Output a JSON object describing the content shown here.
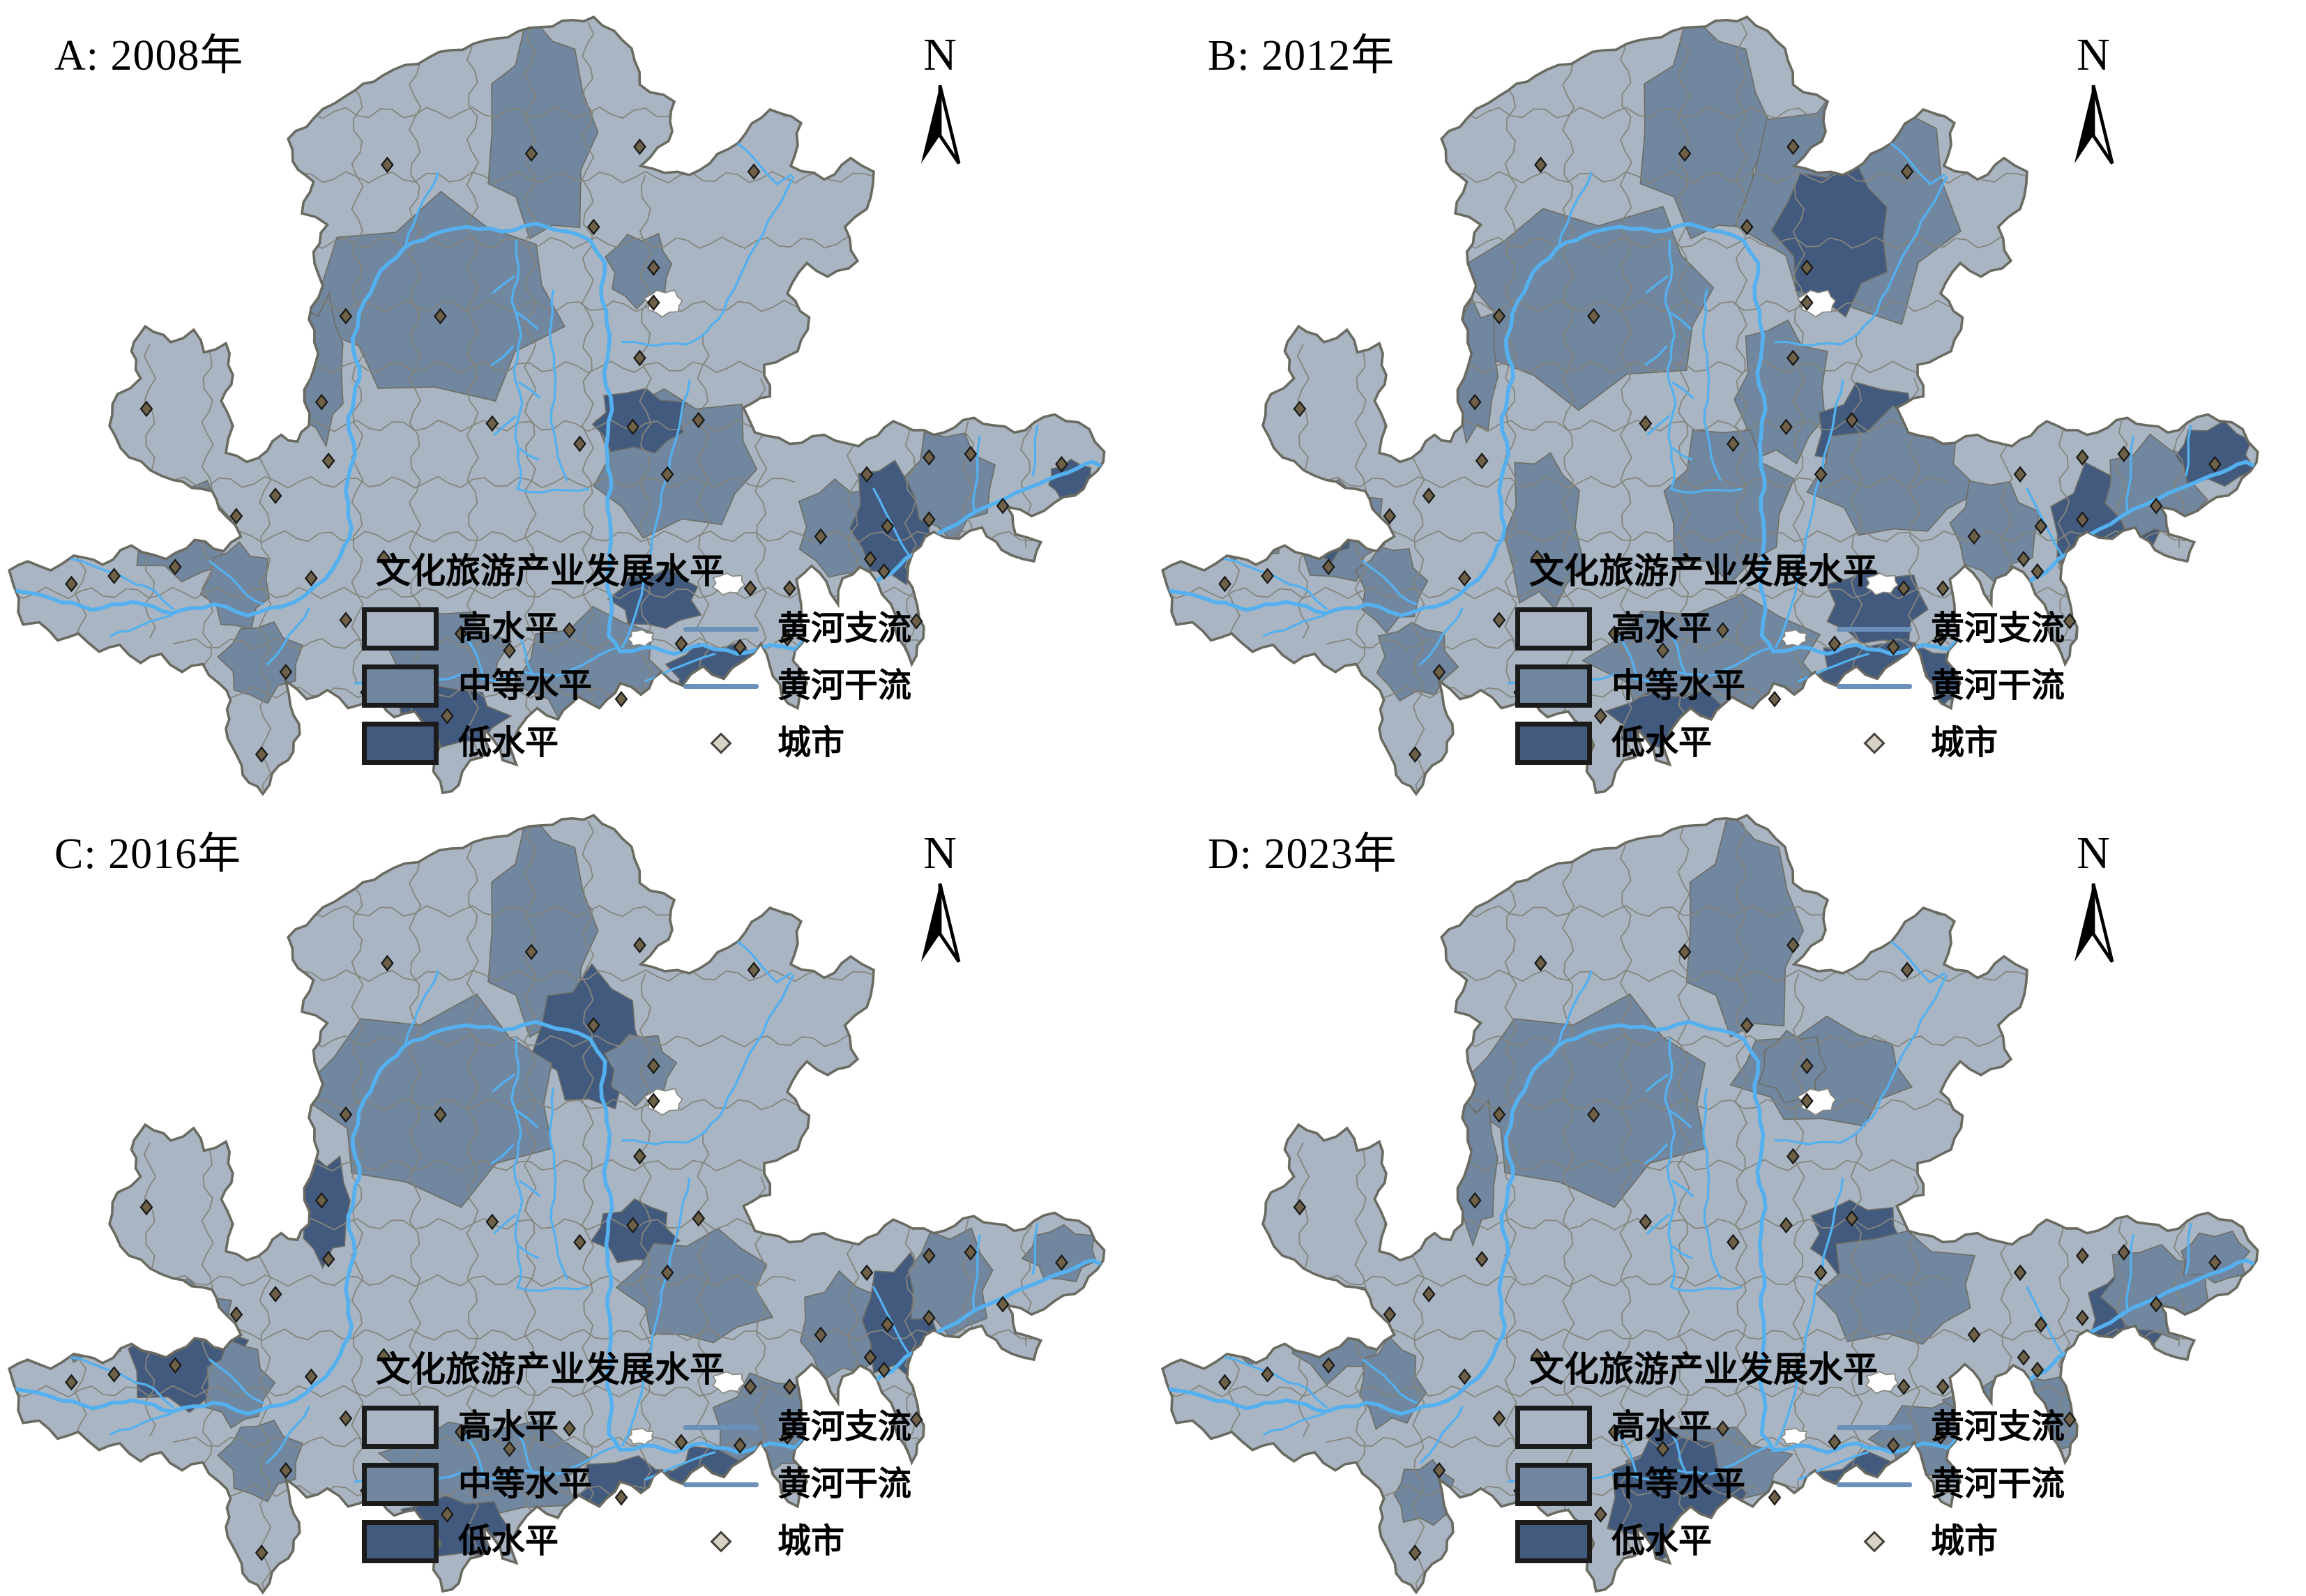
{
  "north_label": "N",
  "panels": [
    {
      "id": "A",
      "title": "A: 2008年",
      "patches": [
        [
          "m",
          470,
          112,
          46,
          94
        ],
        [
          "m",
          379,
          262,
          108,
          84
        ],
        [
          "m",
          279,
          322,
          20,
          60
        ],
        [
          "m",
          555,
          233,
          28,
          31
        ],
        [
          "m",
          585,
          404,
          72,
          62
        ],
        [
          "l",
          555,
          368,
          40,
          28
        ],
        [
          "m",
          388,
          576,
          50,
          40
        ],
        [
          "l",
          390,
          630,
          46,
          26
        ],
        [
          "m",
          515,
          588,
          62,
          50
        ],
        [
          "l",
          570,
          526,
          37,
          26
        ],
        [
          "l",
          622,
          592,
          40,
          29
        ],
        [
          "m",
          730,
          464,
          37,
          44
        ],
        [
          "l",
          773,
          456,
          34,
          52
        ],
        [
          "m",
          824,
          423,
          37,
          46
        ],
        [
          "m",
          867,
          545,
          34,
          34
        ],
        [
          "l",
          930,
          420,
          21,
          16
        ],
        [
          "m",
          80,
          441,
          43,
          49
        ],
        [
          "m",
          158,
          465,
          43,
          43
        ],
        [
          "l",
          85,
          468,
          15,
          15
        ],
        [
          "m",
          206,
          514,
          28,
          37
        ],
        [
          "m",
          227,
          580,
          33,
          34
        ]
      ]
    },
    {
      "id": "B",
      "title": "B: 2012年",
      "patches": [
        [
          "m",
          479,
          112,
          56,
          94
        ],
        [
          "m",
          606,
          172,
          92,
          105
        ],
        [
          "l",
          591,
          203,
          49,
          64
        ],
        [
          "m",
          379,
          262,
          108,
          84
        ],
        [
          "m",
          279,
          322,
          20,
          60
        ],
        [
          "m",
          545,
          343,
          40,
          62
        ],
        [
          "m",
          497,
          441,
          53,
          67
        ],
        [
          "l",
          624,
          377,
          49,
          40
        ],
        [
          "m",
          642,
          416,
          67,
          55
        ],
        [
          "m",
          485,
          581,
          98,
          55
        ],
        [
          "l",
          451,
          633,
          53,
          27
        ],
        [
          "l",
          627,
          532,
          43,
          34
        ],
        [
          "l",
          645,
          596,
          77,
          34
        ],
        [
          "m",
          730,
          464,
          37,
          44
        ],
        [
          "l",
          824,
          465,
          46,
          55
        ],
        [
          "m",
          867,
          429,
          43,
          43
        ],
        [
          "l",
          921,
          398,
          34,
          27
        ],
        [
          "m",
          836,
          539,
          40,
          34
        ],
        [
          "m",
          80,
          441,
          43,
          49
        ],
        [
          "m",
          158,
          465,
          43,
          43
        ],
        [
          "l",
          152,
          470,
          20,
          20
        ],
        [
          "m",
          206,
          514,
          28,
          37
        ],
        [
          "m",
          227,
          580,
          33,
          34
        ],
        [
          "m",
          339,
          465,
          33,
          70
        ]
      ]
    },
    {
      "id": "C",
      "title": "C: 2016年",
      "patches": [
        [
          "m",
          470,
          112,
          46,
          94
        ],
        [
          "l",
          512,
          209,
          46,
          58
        ],
        [
          "m",
          379,
          262,
          108,
          84
        ],
        [
          "l",
          282,
          358,
          22,
          46
        ],
        [
          "m",
          80,
          441,
          43,
          49
        ],
        [
          "m",
          158,
          465,
          43,
          43
        ],
        [
          "l",
          161,
          490,
          49,
          46
        ],
        [
          "m",
          206,
          514,
          28,
          37
        ],
        [
          "l",
          551,
          380,
          34,
          27
        ],
        [
          "m",
          606,
          429,
          62,
          49
        ],
        [
          "m",
          424,
          588,
          86,
          43
        ],
        [
          "l",
          394,
          640,
          46,
          27
        ],
        [
          "l",
          549,
          612,
          49,
          34
        ],
        [
          "l",
          624,
          597,
          43,
          29
        ],
        [
          "m",
          667,
          551,
          49,
          43
        ],
        [
          "m",
          730,
          464,
          37,
          44
        ],
        [
          "l",
          782,
          456,
          34,
          52
        ],
        [
          "m",
          824,
          423,
          37,
          46
        ],
        [
          "m",
          867,
          545,
          34,
          34
        ],
        [
          "m",
          921,
          398,
          30,
          24
        ],
        [
          "m",
          227,
          580,
          33,
          34
        ],
        [
          "m",
          555,
          233,
          28,
          31
        ]
      ]
    },
    {
      "id": "D",
      "title": "D: 2023年",
      "patches": [
        [
          "m",
          512,
          112,
          49,
          94
        ],
        [
          "m",
          582,
          239,
          74,
          44
        ],
        [
          "m",
          379,
          262,
          108,
          84
        ],
        [
          "m",
          279,
          322,
          20,
          60
        ],
        [
          "l",
          609,
          383,
          40,
          31
        ],
        [
          "m",
          645,
          429,
          68,
          49
        ],
        [
          "m",
          479,
          588,
          68,
          37
        ],
        [
          "l",
          451,
          612,
          56,
          55
        ],
        [
          "l",
          618,
          618,
          59,
          41
        ],
        [
          "m",
          685,
          563,
          56,
          37
        ],
        [
          "m",
          770,
          539,
          77,
          37
        ],
        [
          "l",
          845,
          459,
          34,
          46
        ],
        [
          "m",
          870,
          431,
          46,
          40
        ],
        [
          "m",
          80,
          441,
          43,
          49
        ],
        [
          "m",
          158,
          465,
          43,
          43
        ],
        [
          "m",
          206,
          514,
          28,
          37
        ],
        [
          "m",
          236,
          611,
          27,
          27
        ],
        [
          "m",
          921,
          401,
          30,
          22
        ],
        [
          "m",
          555,
          233,
          28,
          31
        ]
      ]
    }
  ],
  "legend": {
    "title": "文化旅游产业发展水平",
    "classes": [
      {
        "label": "高水平",
        "color": "#a9b5c2"
      },
      {
        "label": "中等水平",
        "color": "#71869f"
      },
      {
        "label": "低水平",
        "color": "#425a7e"
      }
    ],
    "lines": [
      {
        "label": "黄河支流",
        "color": "#6b91ba"
      },
      {
        "label": "黄河干流",
        "color": "#6b91ba"
      }
    ],
    "point": {
      "label": "城市",
      "fill": "#d8d2c6",
      "stroke": "#45403a"
    }
  },
  "map": {
    "high_color": "#a9b5c2",
    "medium_color": "#71869f",
    "low_color": "#425a7e",
    "river_color": "#54b0ee",
    "border_color": "#85857d",
    "outline_color": "#6a6a60",
    "patch_stroke": "#6d6d65",
    "city_fill": "#6e6147",
    "city_stroke": "#1a1a1a",
    "mainstem": [
      [
        12,
        518
      ],
      [
        45,
        525
      ],
      [
        80,
        535
      ],
      [
        115,
        528
      ],
      [
        150,
        538
      ],
      [
        185,
        530
      ],
      [
        215,
        540
      ],
      [
        245,
        532
      ],
      [
        265,
        522
      ],
      [
        282,
        508
      ],
      [
        295,
        488
      ],
      [
        305,
        462
      ],
      [
        300,
        430
      ],
      [
        308,
        398
      ],
      [
        302,
        365
      ],
      [
        312,
        330
      ],
      [
        306,
        295
      ],
      [
        316,
        262
      ],
      [
        330,
        235
      ],
      [
        350,
        215
      ],
      [
        375,
        203
      ],
      [
        405,
        196
      ],
      [
        435,
        200
      ],
      [
        465,
        193
      ],
      [
        492,
        200
      ],
      [
        512,
        208
      ],
      [
        525,
        228
      ],
      [
        522,
        260
      ],
      [
        529,
        292
      ],
      [
        524,
        325
      ],
      [
        531,
        358
      ],
      [
        526,
        390
      ],
      [
        530,
        418
      ],
      [
        527,
        445
      ],
      [
        530,
        475
      ],
      [
        527,
        505
      ],
      [
        531,
        535
      ],
      [
        528,
        558
      ],
      [
        538,
        572
      ],
      [
        560,
        568
      ],
      [
        585,
        574
      ],
      [
        610,
        566
      ],
      [
        640,
        574
      ],
      [
        668,
        566
      ],
      [
        690,
        570
      ],
      [
        712,
        545
      ],
      [
        735,
        528
      ],
      [
        758,
        512
      ],
      [
        780,
        496
      ],
      [
        800,
        480
      ],
      [
        820,
        464
      ],
      [
        840,
        452
      ],
      [
        860,
        442
      ],
      [
        880,
        432
      ],
      [
        900,
        424
      ],
      [
        918,
        416
      ],
      [
        934,
        410
      ],
      [
        948,
        404
      ],
      [
        956,
        408
      ]
    ],
    "tributaries": [
      [
        [
          448,
          208
        ],
        [
          450,
          232
        ],
        [
          444,
          262
        ],
        [
          452,
          292
        ],
        [
          446,
          322
        ],
        [
          453,
          352
        ],
        [
          447,
          382
        ],
        [
          452,
          412
        ],
        [
          449,
          428
        ],
        [
          470,
          431
        ],
        [
          492,
          429
        ],
        [
          510,
          428
        ]
      ],
      [
        [
          446,
          240
        ],
        [
          428,
          254
        ]
      ],
      [
        [
          449,
          272
        ],
        [
          466,
          286
        ]
      ],
      [
        [
          445,
          302
        ],
        [
          427,
          318
        ]
      ],
      [
        [
          451,
          334
        ],
        [
          468,
          347
        ]
      ],
      [
        [
          447,
          364
        ],
        [
          429,
          380
        ]
      ],
      [
        [
          451,
          392
        ],
        [
          467,
          402
        ]
      ],
      [
        [
          480,
          252
        ],
        [
          477,
          290
        ],
        [
          482,
          330
        ],
        [
          478,
          368
        ],
        [
          484,
          400
        ],
        [
          492,
          420
        ]
      ],
      [
        [
          688,
          152
        ],
        [
          672,
          182
        ],
        [
          656,
          212
        ],
        [
          641,
          242
        ],
        [
          628,
          270
        ],
        [
          612,
          290
        ],
        [
          596,
          300
        ],
        [
          560,
          300
        ],
        [
          540,
          298
        ]
      ],
      [
        [
          62,
          490
        ],
        [
          86,
          498
        ],
        [
          110,
          508
        ],
        [
          134,
          518
        ],
        [
          150,
          534
        ]
      ],
      [
        [
          96,
          558
        ],
        [
          120,
          550
        ],
        [
          148,
          540
        ]
      ],
      [
        [
          182,
          492
        ],
        [
          200,
          506
        ],
        [
          214,
          522
        ],
        [
          228,
          530
        ]
      ],
      [
        [
          232,
          583
        ],
        [
          246,
          566
        ],
        [
          258,
          549
        ],
        [
          268,
          534
        ]
      ],
      [
        [
          308,
          600
        ],
        [
          340,
          594
        ],
        [
          370,
          600
        ],
        [
          400,
          592
        ],
        [
          430,
          598
        ],
        [
          455,
          590
        ],
        [
          480,
          594
        ],
        [
          505,
          584
        ],
        [
          520,
          575
        ],
        [
          534,
          569
        ]
      ],
      [
        [
          420,
          596
        ],
        [
          414,
          576
        ],
        [
          404,
          558
        ]
      ],
      [
        [
          462,
          592
        ],
        [
          456,
          574
        ],
        [
          450,
          558
        ]
      ],
      [
        [
          598,
          332
        ],
        [
          591,
          362
        ],
        [
          584,
          392
        ],
        [
          577,
          422
        ],
        [
          571,
          452
        ],
        [
          565,
          482
        ],
        [
          558,
          512
        ],
        [
          551,
          540
        ],
        [
          545,
          558
        ],
        [
          540,
          568
        ]
      ],
      [
        [
          758,
          428
        ],
        [
          768,
          448
        ],
        [
          778,
          468
        ],
        [
          788,
          486
        ]
      ],
      [
        [
          850,
          382
        ],
        [
          848,
          406
        ],
        [
          846,
          428
        ],
        [
          845,
          448
        ]
      ],
      [
        [
          900,
          372
        ],
        [
          898,
          396
        ],
        [
          896,
          416
        ]
      ],
      [
        [
          560,
          598
        ],
        [
          580,
          589
        ],
        [
          600,
          581
        ],
        [
          620,
          574
        ]
      ],
      [
        [
          640,
          122
        ],
        [
          658,
          140
        ],
        [
          674,
          158
        ],
        [
          686,
          150
        ]
      ],
      [
        [
          352,
          212
        ],
        [
          362,
          184
        ],
        [
          374,
          162
        ],
        [
          380,
          148
        ]
      ]
    ],
    "holes": [
      [
        576,
        263,
        16,
        11
      ],
      [
        632,
        512,
        14,
        9
      ],
      [
        556,
        560,
        11,
        7
      ]
    ],
    "cities": [
      [
        336,
        141
      ],
      [
        461,
        131
      ],
      [
        555,
        125
      ],
      [
        654,
        147
      ],
      [
        515,
        196
      ],
      [
        567,
        232
      ],
      [
        567,
        263
      ],
      [
        555,
        312
      ],
      [
        382,
        275
      ],
      [
        300,
        275
      ],
      [
        279,
        351
      ],
      [
        127,
        357
      ],
      [
        427,
        370
      ],
      [
        503,
        388
      ],
      [
        549,
        373
      ],
      [
        606,
        367
      ],
      [
        579,
        415
      ],
      [
        712,
        470
      ],
      [
        752,
        415
      ],
      [
        806,
        400
      ],
      [
        842,
        397
      ],
      [
        770,
        461
      ],
      [
        767,
        501
      ],
      [
        806,
        455
      ],
      [
        870,
        443
      ],
      [
        921,
        406
      ],
      [
        685,
        516
      ],
      [
        755,
        490
      ],
      [
        795,
        545
      ],
      [
        683,
        560
      ],
      [
        62,
        512
      ],
      [
        99,
        505
      ],
      [
        152,
        497
      ],
      [
        205,
        452
      ],
      [
        239,
        434
      ],
      [
        285,
        403
      ],
      [
        270,
        507
      ],
      [
        333,
        489
      ],
      [
        300,
        544
      ],
      [
        248,
        590
      ],
      [
        318,
        608
      ],
      [
        400,
        556
      ],
      [
        388,
        629
      ],
      [
        442,
        571
      ],
      [
        494,
        553
      ],
      [
        539,
        614
      ],
      [
        591,
        565
      ],
      [
        651,
        516
      ],
      [
        642,
        568
      ],
      [
        227,
        663
      ]
    ]
  }
}
